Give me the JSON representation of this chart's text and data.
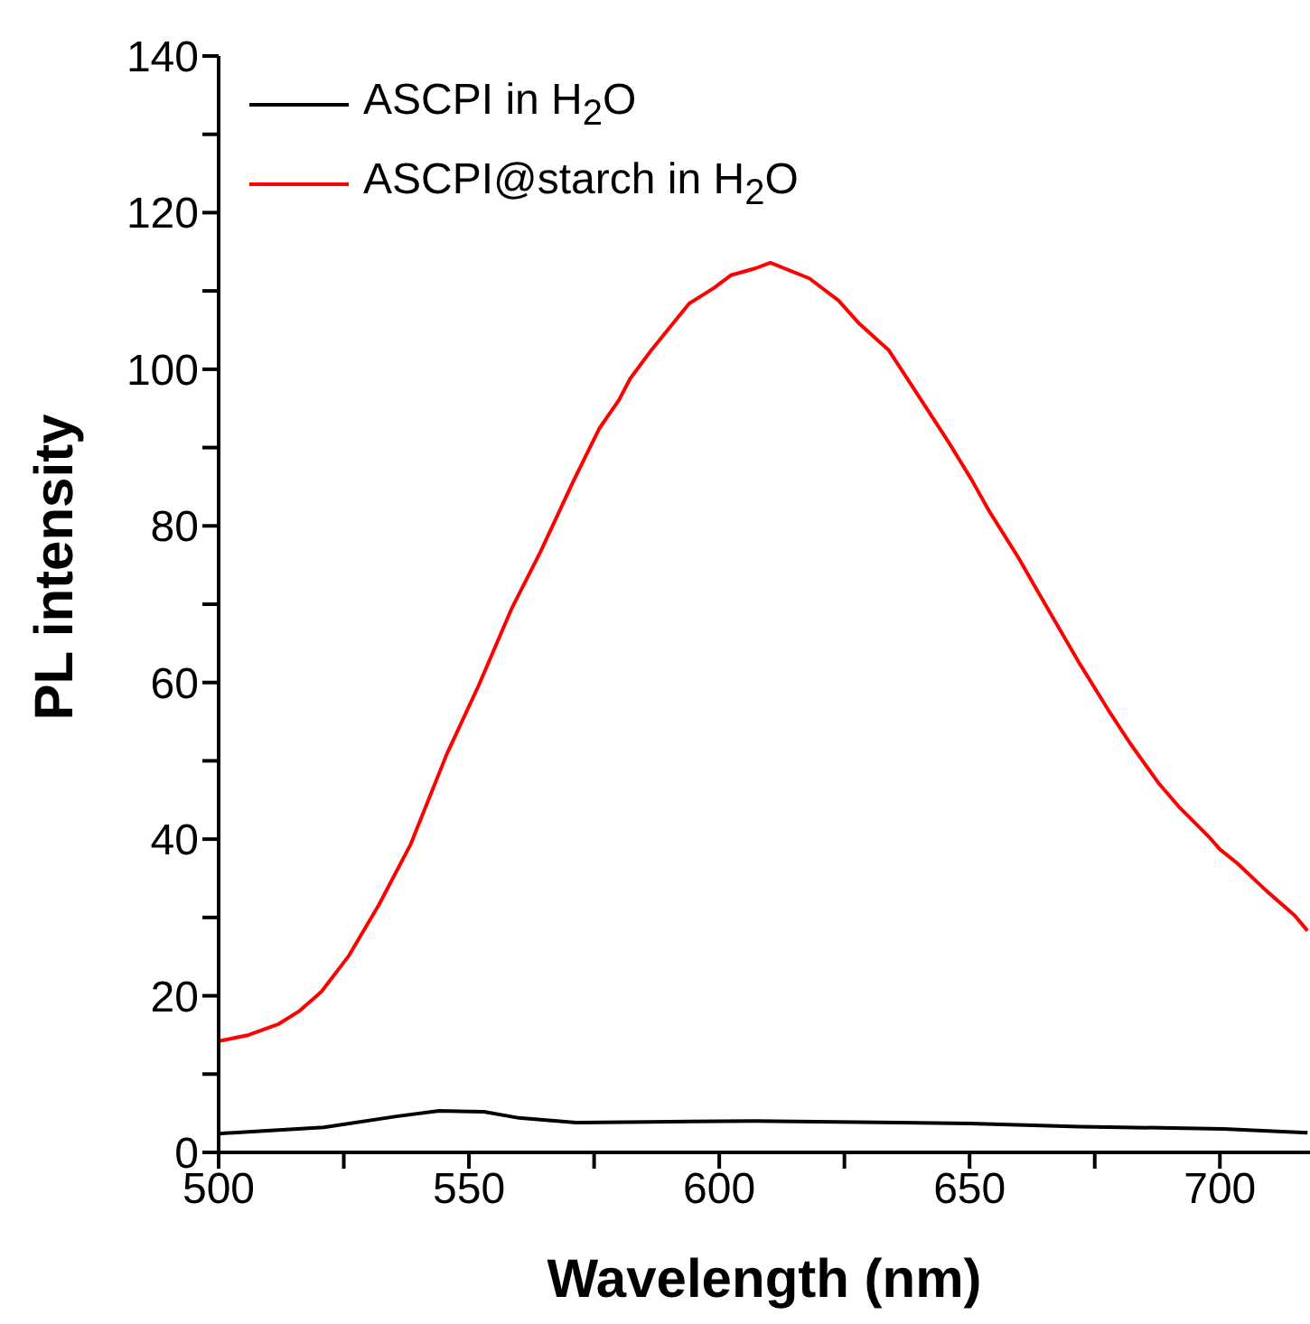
{
  "chart_data": {
    "type": "line",
    "xlabel": "Wavelength (nm)",
    "ylabel": "PL intensity",
    "xlim": [
      500,
      718
    ],
    "ylim": [
      0,
      140
    ],
    "xticks": [
      500,
      {
        "value": 525,
        "label": null
      },
      550,
      {
        "value": 575,
        "label": null
      },
      600,
      {
        "value": 625,
        "label": null
      },
      650,
      {
        "value": 675,
        "label": null
      },
      700
    ],
    "yticks": [
      0,
      {
        "value": 10,
        "label": null
      },
      20,
      {
        "value": 30,
        "label": null
      },
      40,
      {
        "value": 50,
        "label": null
      },
      60,
      {
        "value": 70,
        "label": null
      },
      80,
      {
        "value": 90,
        "label": null
      },
      100,
      {
        "value": 110,
        "label": null
      },
      120,
      {
        "value": 130,
        "label": null
      },
      140
    ],
    "grid": false,
    "legend": "top left",
    "marker": "none",
    "line_style": "solid",
    "series": [
      {
        "name": "ASCPI in H$_{2}$O",
        "color": "#000000",
        "x": [
          500,
          521,
          535.5,
          544,
          553,
          560,
          571.4,
          586,
          607,
          636,
          650,
          672,
          700.7,
          717.5
        ],
        "values": [
          2.4,
          3.2,
          4.6,
          5.3,
          5.2,
          4.4,
          3.8,
          3.9,
          4.0,
          3.8,
          3.7,
          3.3,
          3.0,
          2.5
        ]
      },
      {
        "name": "ASCPI@starch in H$_{2}$O",
        "color": "#ff0000",
        "x": [
          500,
          506,
          512,
          516,
          520.5,
          526,
          532,
          538.4,
          545.6,
          552,
          558.5,
          564.3,
          570.7,
          576,
          580,
          582.2,
          586.5,
          594,
          599,
          602.3,
          607.3,
          610.2,
          618,
          623.8,
          628,
          633.9,
          640.3,
          645.7,
          650.4,
          654,
          659.7,
          664,
          672,
          677.7,
          682,
          687.7,
          692,
          697.8,
          700,
          703.5,
          709.3,
          715,
          717.5
        ],
        "values": [
          14.2,
          15,
          16.4,
          18,
          20.5,
          25.1,
          31.6,
          39.4,
          50.9,
          59.7,
          69.4,
          76.7,
          85.5,
          92.4,
          96.1,
          98.8,
          102.5,
          108.4,
          110.4,
          112,
          112.9,
          113.6,
          111.6,
          108.8,
          105.8,
          102.4,
          96.1,
          90.8,
          85.9,
          81.8,
          76,
          71.2,
          62.4,
          56.5,
          52.3,
          47.2,
          44,
          40.3,
          38.7,
          36.9,
          33.4,
          30.2,
          28.3
        ]
      }
    ]
  }
}
